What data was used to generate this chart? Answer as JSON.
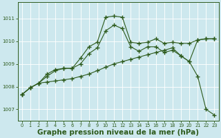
{
  "background_color": "#cde8ee",
  "grid_color": "#b0d4dc",
  "line_color": "#2d5a1b",
  "xlabel": "Graphe pression niveau de la mer (hPa)",
  "xlabel_fontsize": 7.5,
  "ylim": [
    1006.5,
    1011.7
  ],
  "xlim": [
    -0.5,
    23.5
  ],
  "yticks": [
    1007,
    1008,
    1009,
    1010,
    1011
  ],
  "xticks": [
    0,
    1,
    2,
    3,
    4,
    5,
    6,
    7,
    8,
    9,
    10,
    11,
    12,
    13,
    14,
    15,
    16,
    17,
    18,
    19,
    20,
    21,
    22,
    23
  ],
  "series1_x": [
    0,
    1,
    2,
    3,
    4,
    5,
    6,
    7,
    8,
    9,
    10,
    11,
    12,
    13,
    14,
    15,
    16,
    17,
    18,
    19,
    20,
    21,
    22,
    23
  ],
  "series1_y": [
    1007.65,
    1007.95,
    1008.15,
    1008.55,
    1008.75,
    1008.8,
    1008.8,
    1009.25,
    1009.75,
    1009.95,
    1011.05,
    1011.1,
    1011.05,
    1009.95,
    1009.9,
    1009.95,
    1010.1,
    1009.9,
    1009.95,
    1009.9,
    1009.9,
    1010.05,
    1010.1,
    1010.1
  ],
  "series2_x": [
    0,
    1,
    2,
    3,
    4,
    5,
    6,
    7,
    8,
    9,
    10,
    11,
    12,
    13,
    14,
    15,
    16,
    17,
    18,
    19,
    20,
    21,
    22,
    23
  ],
  "series2_y": [
    1007.65,
    1007.95,
    1008.15,
    1008.2,
    1008.25,
    1008.3,
    1008.35,
    1008.45,
    1008.55,
    1008.7,
    1008.85,
    1009.0,
    1009.1,
    1009.2,
    1009.3,
    1009.4,
    1009.5,
    1009.6,
    1009.7,
    1009.35,
    1009.1,
    1008.45,
    1007.0,
    1006.75
  ],
  "series3_x": [
    0,
    1,
    2,
    3,
    4,
    5,
    6,
    7,
    8,
    9,
    10,
    11,
    12,
    13,
    14,
    15,
    16,
    17,
    18,
    19,
    20,
    21,
    22,
    23
  ],
  "series3_y": [
    1007.65,
    1007.95,
    1008.15,
    1008.45,
    1008.7,
    1008.8,
    1008.8,
    1009.0,
    1009.45,
    1009.7,
    1010.45,
    1010.7,
    1010.55,
    1009.75,
    1009.55,
    1009.75,
    1009.75,
    1009.5,
    1009.6,
    1009.35,
    1009.1,
    1010.05,
    1010.1,
    1010.1
  ]
}
